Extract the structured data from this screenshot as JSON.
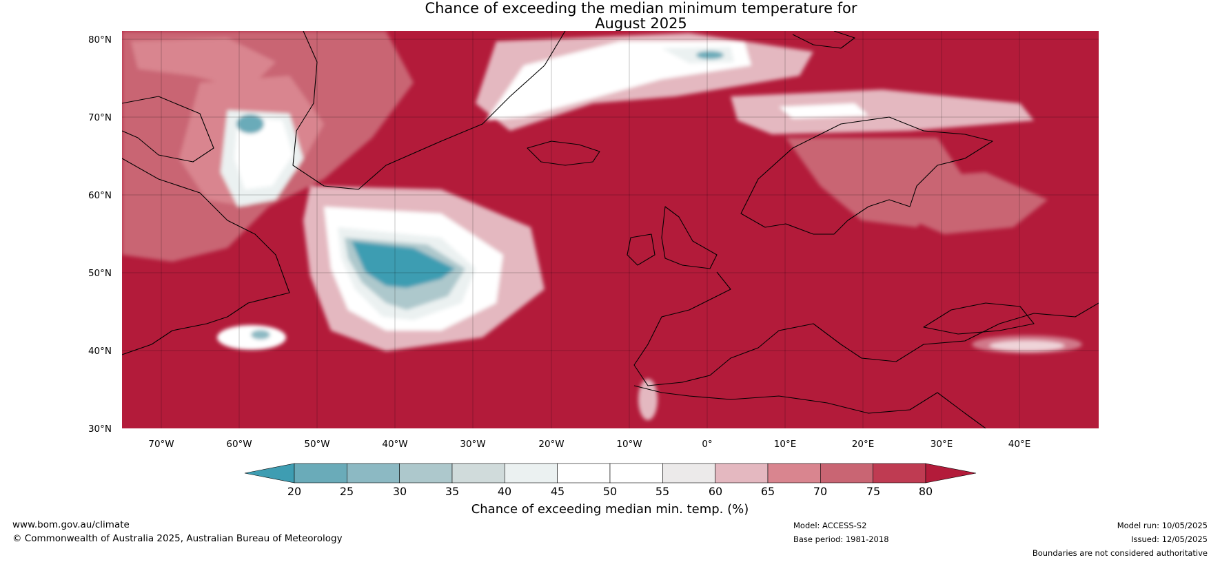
{
  "title": {
    "line1": "Chance of exceeding the median minimum temperature for",
    "line2": "August 2025"
  },
  "map": {
    "projection": "equirectangular",
    "lon_range": [
      -75,
      50
    ],
    "lat_range": [
      30,
      81
    ],
    "lat_ticks": [
      "80°N",
      "70°N",
      "60°N",
      "50°N",
      "40°N",
      "30°N"
    ],
    "lon_ticks": [
      "70°W",
      "60°W",
      "50°W",
      "40°W",
      "30°W",
      "20°W",
      "10°W",
      "0°",
      "10°E",
      "20°E",
      "30°E",
      "40°E"
    ],
    "background_class_color": "#b31b3a",
    "features": [
      {
        "name": "cool-anomaly-north-atlantic",
        "label": "20-40%",
        "lon": -39,
        "lat": 50
      },
      {
        "name": "cool-anomaly-baffin-bay",
        "label": "20-40%",
        "lon": -59,
        "lat": 69
      },
      {
        "name": "cool-anomaly-nova-scotia-offshore",
        "label": "20-40%",
        "lon": -57,
        "lat": 42
      },
      {
        "name": "neutral-band-greenland-svalbard",
        "label": "45-60%",
        "lon": -5,
        "lat": 76
      },
      {
        "name": "neutral-band-black-sea-turkey",
        "label": "55-65%",
        "lon": 38,
        "lat": 40.5
      }
    ]
  },
  "colorbar": {
    "label": "Chance of exceeding median min. temp. (%)",
    "ticks": [
      "20",
      "25",
      "30",
      "35",
      "40",
      "45",
      "50",
      "55",
      "60",
      "65",
      "70",
      "75",
      "80"
    ],
    "colors": [
      "#3e9db2",
      "#6aabb9",
      "#8cb9c3",
      "#adc8cc",
      "#d0dbdb",
      "#ebf1f1",
      "#ffffff",
      "#ffffff",
      "#eceaea",
      "#e4b8c0",
      "#d9858f",
      "#c96573",
      "#bf3b52",
      "#b31b3a"
    ]
  },
  "footer": {
    "website": "www.bom.gov.au/climate",
    "copyright": "© Commonwealth of Australia 2025, Australian Bureau of Meteorology",
    "model": "Model: ACCESS-S2",
    "base_period": "Base period: 1981-2018",
    "model_run": "Model run: 10/05/2025",
    "issued": "Issued: 12/05/2025",
    "disclaimer": "Boundaries are not considered authoritative"
  }
}
